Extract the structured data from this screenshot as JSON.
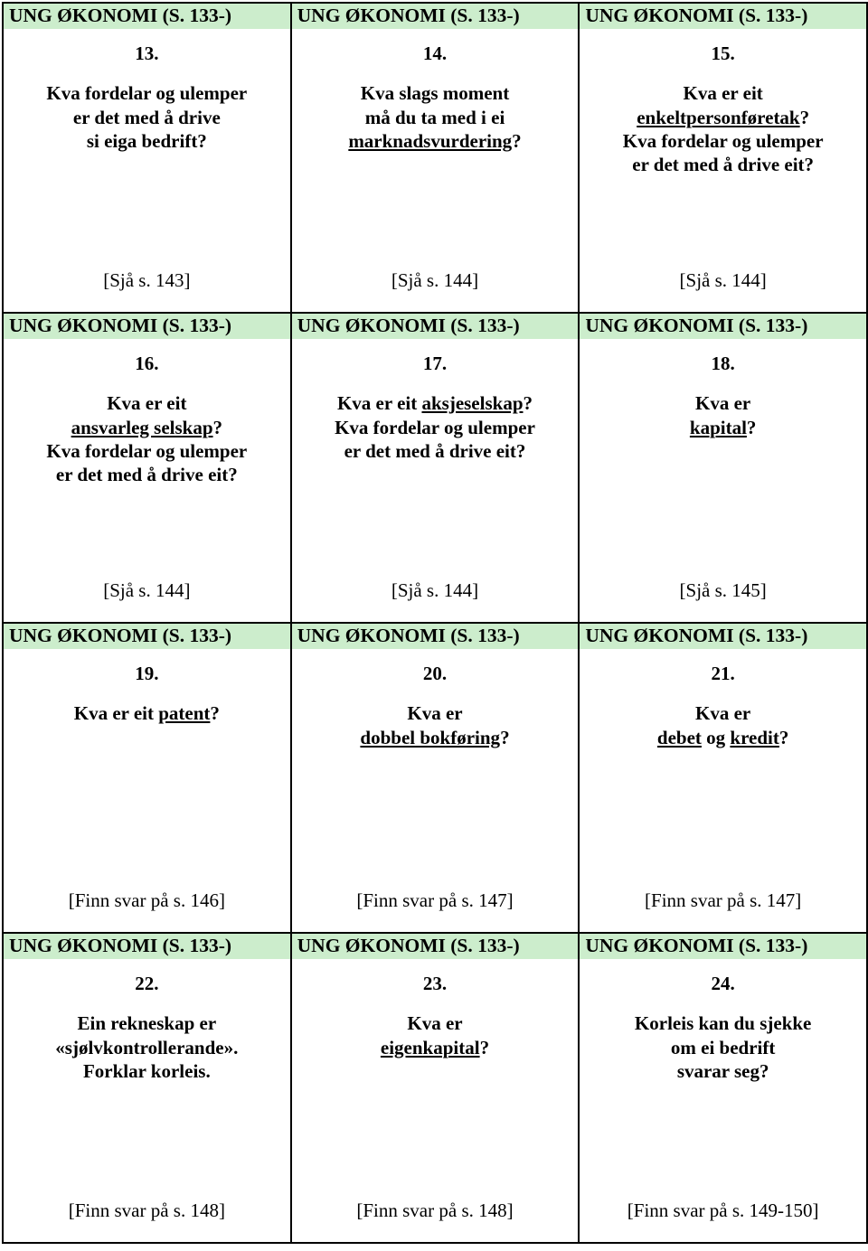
{
  "header_text": "UNG ØKONOMI (S. 133-)",
  "colors": {
    "header_bg": "#ccedcc",
    "border": "#000000",
    "page_bg": "#ffffff",
    "text": "#000000"
  },
  "cards": [
    {
      "num": "13.",
      "lines": [
        {
          "text": "Kva fordelar og ulemper",
          "u": false
        },
        {
          "text": "er det med å drive",
          "u": false
        },
        {
          "text": "si eiga bedrift?",
          "u": false
        }
      ],
      "ref": "[Sjå s. 143]"
    },
    {
      "num": "14.",
      "lines": [
        {
          "text": "Kva slags moment",
          "u": false
        },
        {
          "text": "må du ta med i ei",
          "u": false
        },
        {
          "parts": [
            {
              "t": "marknadsvurdering",
              "u": true
            },
            {
              "t": "?",
              "u": false
            }
          ]
        }
      ],
      "ref": "[Sjå s. 144]"
    },
    {
      "num": "15.",
      "lines": [
        {
          "text": "Kva er eit",
          "u": false
        },
        {
          "parts": [
            {
              "t": "enkeltpersonføretak",
              "u": true
            },
            {
              "t": "?",
              "u": false
            }
          ]
        },
        {
          "text": "Kva fordelar og ulemper",
          "u": false
        },
        {
          "text": "er det med å drive eit?",
          "u": false
        }
      ],
      "ref": "[Sjå s. 144]"
    },
    {
      "num": "16.",
      "lines": [
        {
          "text": "Kva er eit",
          "u": false
        },
        {
          "parts": [
            {
              "t": "ansvarleg selskap",
              "u": true
            },
            {
              "t": "?",
              "u": false
            }
          ]
        },
        {
          "text": "Kva fordelar og ulemper",
          "u": false
        },
        {
          "text": "er det med å drive eit?",
          "u": false
        }
      ],
      "ref": "[Sjå s. 144]"
    },
    {
      "num": "17.",
      "lines": [
        {
          "parts": [
            {
              "t": "Kva er eit ",
              "u": false
            },
            {
              "t": "aksjeselskap",
              "u": true
            },
            {
              "t": "?",
              "u": false
            }
          ]
        },
        {
          "text": "Kva fordelar og ulemper",
          "u": false
        },
        {
          "text": "er det med å drive eit?",
          "u": false
        }
      ],
      "ref": "[Sjå s. 144]"
    },
    {
      "num": "18.",
      "lines": [
        {
          "text": "Kva er",
          "u": false
        },
        {
          "parts": [
            {
              "t": "kapital",
              "u": true
            },
            {
              "t": "?",
              "u": false
            }
          ]
        }
      ],
      "ref": "[Sjå s. 145]"
    },
    {
      "num": "19.",
      "lines": [
        {
          "parts": [
            {
              "t": "Kva er eit ",
              "u": false
            },
            {
              "t": "patent",
              "u": true
            },
            {
              "t": "?",
              "u": false
            }
          ]
        }
      ],
      "ref": "[Finn svar på s. 146]"
    },
    {
      "num": "20.",
      "lines": [
        {
          "text": "Kva er",
          "u": false
        },
        {
          "parts": [
            {
              "t": "dobbel bokføring",
              "u": true
            },
            {
              "t": "?",
              "u": false
            }
          ]
        }
      ],
      "ref": "[Finn svar på s. 147]"
    },
    {
      "num": "21.",
      "lines": [
        {
          "text": "Kva er",
          "u": false
        },
        {
          "parts": [
            {
              "t": "debet",
              "u": true
            },
            {
              "t": " og ",
              "u": false
            },
            {
              "t": "kredit",
              "u": true
            },
            {
              "t": "?",
              "u": false
            }
          ]
        }
      ],
      "ref": "[Finn svar på s. 147]"
    },
    {
      "num": "22.",
      "lines": [
        {
          "text": "Ein rekneskap er",
          "u": false
        },
        {
          "text": "«sjølvkontrollerande».",
          "u": false
        },
        {
          "text": "Forklar korleis.",
          "u": false
        }
      ],
      "ref": "[Finn svar på s. 148]"
    },
    {
      "num": "23.",
      "lines": [
        {
          "text": "Kva er",
          "u": false
        },
        {
          "parts": [
            {
              "t": "eigenkapital",
              "u": true
            },
            {
              "t": "?",
              "u": false
            }
          ]
        }
      ],
      "ref": "[Finn svar på s. 148]"
    },
    {
      "num": "24.",
      "lines": [
        {
          "text": "Korleis kan du sjekke",
          "u": false
        },
        {
          "text": "om ei bedrift",
          "u": false
        },
        {
          "text": "svarar seg?",
          "u": false
        }
      ],
      "ref": "[Finn svar på s. 149-150]"
    }
  ]
}
